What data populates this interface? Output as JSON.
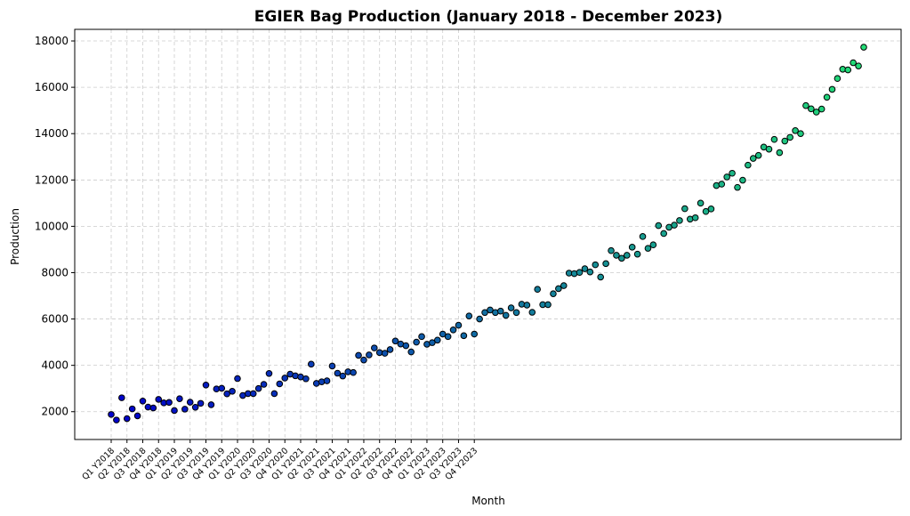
{
  "chart_data": {
    "type": "scatter",
    "title": "EGIER Bag Production (January 2018 - December 2023)",
    "xlabel": "Month",
    "ylabel": "Production",
    "ylim": [
      800,
      18500
    ],
    "yticks": [
      2000,
      4000,
      6000,
      8000,
      10000,
      12000,
      14000,
      16000,
      18000
    ],
    "grid": true,
    "color_from": "#0000cc",
    "color_to": "#22dd77",
    "categories": [
      "Q1 Y2018",
      "Q2 Y2018",
      "Q3 Y2018",
      "Q4 Y2018",
      "Q1 Y2019",
      "Q2 Y2019",
      "Q3 Y2019",
      "Q4 Y2019",
      "Q1 Y2020",
      "Q2 Y2020",
      "Q3 Y2020",
      "Q4 Y2020",
      "Q1 Y2021",
      "Q2 Y2021",
      "Q3 Y2021",
      "Q4 Y2021",
      "Q1 Y2022",
      "Q2 Y2022",
      "Q3 Y2022",
      "Q4 Y2022",
      "Q1 Y2023",
      "Q2 Y2023",
      "Q3 Y2023",
      "Q4 Y2023"
    ],
    "values": [
      1880,
      1640,
      2600,
      1700,
      2120,
      1820,
      2460,
      2200,
      2160,
      2530,
      2380,
      2400,
      2050,
      2560,
      2110,
      2410,
      2190,
      2360,
      3150,
      2300,
      2980,
      3010,
      2770,
      2880,
      3430,
      2700,
      2780,
      2780,
      3000,
      3180,
      3650,
      2780,
      3200,
      3450,
      3620,
      3550,
      3500,
      3420,
      4050,
      3220,
      3290,
      3330,
      3970,
      3660,
      3540,
      3720,
      3690,
      4430,
      4230,
      4450,
      4750,
      4550,
      4520,
      4680,
      5050,
      4920,
      4850,
      4580,
      5000,
      5240,
      4910,
      4980,
      5090,
      5350,
      5240,
      5530,
      5730,
      5280,
      6130,
      5350,
      6000,
      6280,
      6390,
      6280,
      6340,
      6160,
      6480,
      6280,
      6640,
      6600,
      6290,
      7280,
      6620,
      6620,
      7090,
      7310,
      7440,
      7980,
      7960,
      8010,
      8170,
      8030,
      8340,
      7810,
      8390,
      8950,
      8750,
      8620,
      8750,
      9100,
      8800,
      9560,
      9050,
      9200,
      10030,
      9690,
      9960,
      10050,
      10250,
      10760,
      10310,
      10370,
      11000,
      10640,
      10750,
      11760,
      11820,
      12130,
      12290,
      11680,
      11990,
      12640,
      12930,
      13060,
      13420,
      13330,
      13750,
      13180,
      13680,
      13840,
      14130,
      14000,
      15210,
      15070,
      14930,
      15060,
      15570,
      15910,
      16380,
      16780,
      16750,
      17060,
      16920,
      17730
    ]
  }
}
